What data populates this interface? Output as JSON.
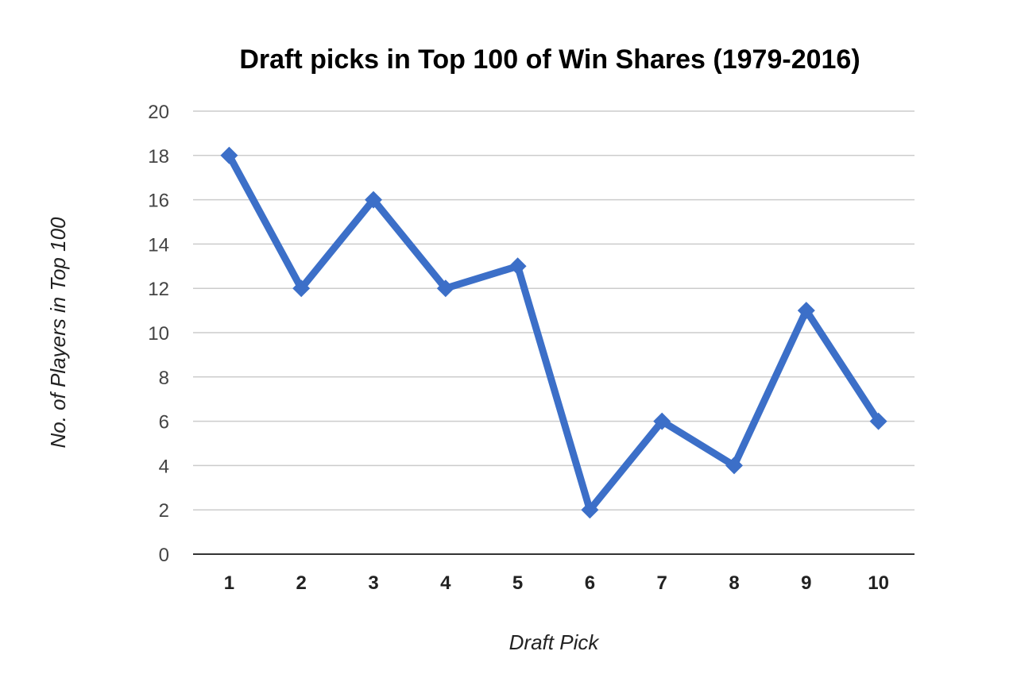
{
  "chart_data": {
    "type": "line",
    "title": "Draft picks in Top 100 of Win Shares (1979-2016)",
    "xlabel": "Draft Pick",
    "ylabel": "No. of Players in Top 100",
    "categories": [
      "1",
      "2",
      "3",
      "4",
      "5",
      "6",
      "7",
      "8",
      "9",
      "10"
    ],
    "series": [
      {
        "values": [
          18,
          12,
          16,
          12,
          13,
          2,
          6,
          4,
          11,
          6
        ]
      }
    ],
    "ylim": [
      0,
      20
    ],
    "yticks": [
      "0",
      "2",
      "4",
      "6",
      "8",
      "10",
      "12",
      "14",
      "16",
      "18",
      "20"
    ],
    "grid": true,
    "legend": "none",
    "marker": "diamond",
    "colors": {
      "series": "#3c6fc8",
      "grid": "#cccccc",
      "axis": "#333333"
    }
  }
}
